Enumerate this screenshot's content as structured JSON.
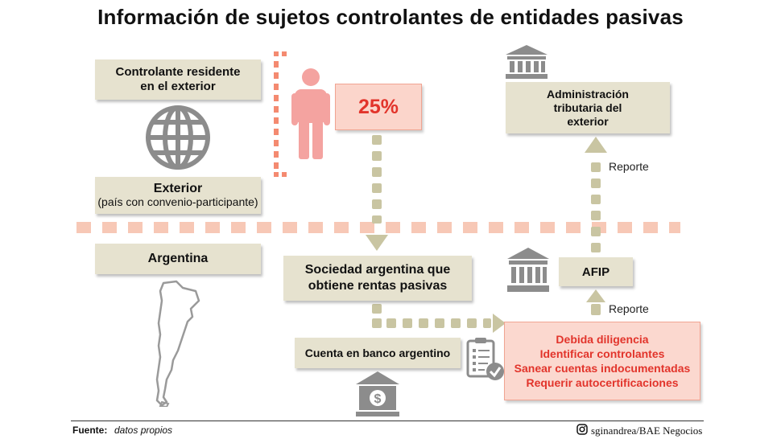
{
  "title": "Información de sujetos controlantes de entidades pasivas",
  "boxes": {
    "controlante": [
      "Controlante residente",
      "en el exterior"
    ],
    "exterior_title": "Exterior",
    "exterior_sub": "(país con convenio-participante)",
    "argentina": "Argentina",
    "percent": "25%",
    "sociedad": [
      "Sociedad argentina que",
      "obtiene rentas pasivas"
    ],
    "cuenta": "Cuenta en banco argentino",
    "admin": [
      "Administración",
      "tributaria del",
      "exterior"
    ],
    "afip": "AFIP"
  },
  "reporte_labels": [
    "Reporte",
    "Reporte"
  ],
  "obligations": [
    "Debida diligencia",
    "Identificar controlantes",
    "Sanear cuentas indocumentadas",
    "Requerir autocertificaciones"
  ],
  "footer": {
    "source_label": "Fuente:",
    "source_value": "datos propios",
    "credit": "sginandrea/BAE Negocios"
  },
  "icons": [
    "globe-icon",
    "person-icon",
    "government-building-icon",
    "argentina-map-icon",
    "bank-dollar-icon",
    "checklist-icon",
    "instagram-icon"
  ],
  "colors": {
    "box": "#e6e2cf",
    "accent_red": "#e2342b",
    "pink_fill": "#fbd5cb",
    "dots_salmon": "#f7c8b6",
    "arrow_khaki": "#c9c5a2",
    "icon_gray": "#8c8c8c"
  }
}
